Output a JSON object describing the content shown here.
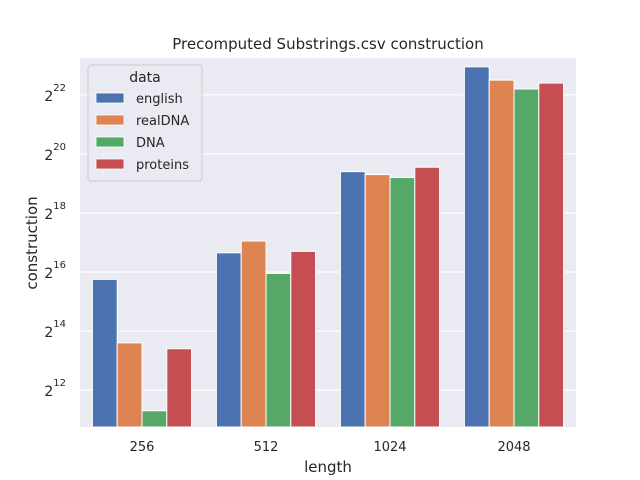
{
  "chart_data": {
    "type": "bar",
    "title": "Precomputed Substrings.csv construction",
    "xlabel": "length",
    "ylabel": "construction",
    "yscale": "log2",
    "categories": [
      "256",
      "512",
      "1024",
      "2048"
    ],
    "y_tick_exponents": [
      12,
      14,
      16,
      18,
      20,
      22
    ],
    "y_tick_base": "2",
    "ylim_log2": [
      10.75,
      23.25
    ],
    "legend_title": "data",
    "legend_position": "upper-left",
    "grid": true,
    "series": [
      {
        "name": "english",
        "color": "#4c72b0",
        "log2_values": [
          15.75,
          16.65,
          19.4,
          22.95
        ]
      },
      {
        "name": "realDNA",
        "color": "#dd8452",
        "log2_values": [
          13.6,
          17.05,
          19.3,
          22.5
        ]
      },
      {
        "name": "DNA",
        "color": "#55a868",
        "log2_values": [
          11.3,
          15.95,
          19.2,
          22.2
        ]
      },
      {
        "name": "proteins",
        "color": "#c44e52",
        "log2_values": [
          13.4,
          16.7,
          19.55,
          22.4
        ]
      }
    ]
  }
}
